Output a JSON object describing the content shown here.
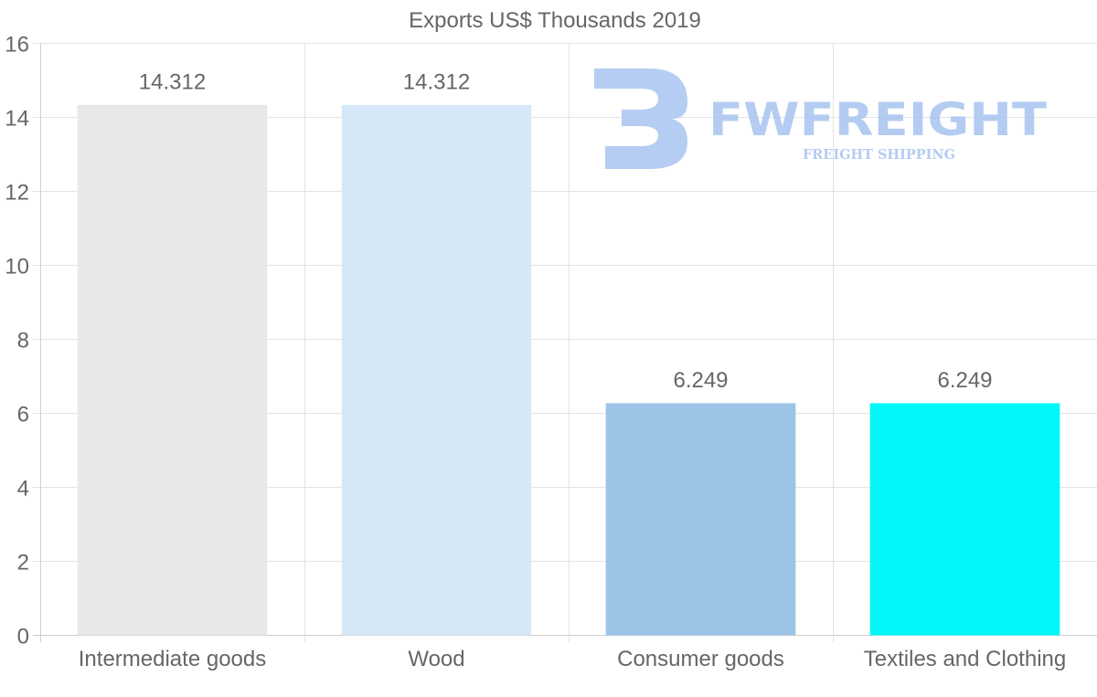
{
  "chart_data": {
    "type": "bar",
    "title": "Exports US$ Thousands 2019",
    "categories": [
      "Intermediate goods",
      "Wood",
      "Consumer goods",
      "Textiles and Clothing"
    ],
    "values": [
      14.312,
      14.312,
      6.249,
      6.249
    ],
    "data_labels": [
      "14.312",
      "14.312",
      "6.249",
      "6.249"
    ],
    "bar_colors": [
      "#e8e8e8",
      "#d6e8f8",
      "#9cc4e6",
      "#00f8f8"
    ],
    "ylim": [
      0,
      16
    ],
    "y_ticks": [
      0,
      2,
      4,
      6,
      8,
      10,
      12,
      14,
      16
    ],
    "xlabel": "",
    "ylabel": "",
    "grid": true,
    "legend": "none"
  },
  "watermark": {
    "brand": "FWFREIGHT",
    "tagline": "FREIGHT SHIPPING",
    "color": "#a8c4f0",
    "logo_icon": "fwfreight-logo-icon"
  }
}
